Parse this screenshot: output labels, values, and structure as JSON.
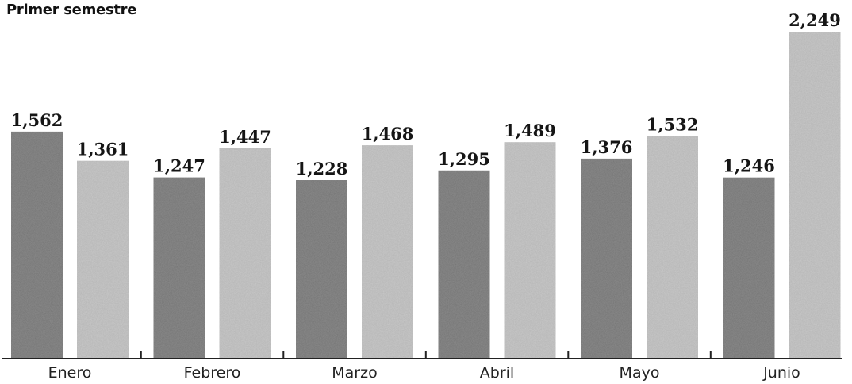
{
  "chart_data": {
    "type": "bar",
    "title": "Primer semestre",
    "categories": [
      "Enero",
      "Febrero",
      "Marzo",
      "Abril",
      "Mayo",
      "Junio"
    ],
    "series": [
      {
        "values": [
          1562,
          1247,
          1228,
          1295,
          1376,
          1246
        ],
        "color": "#8c8c8c"
      },
      {
        "values": [
          1361,
          1447,
          1468,
          1489,
          1532,
          2249
        ],
        "color": "#c9c9c9"
      }
    ],
    "value_labels": [
      [
        "1,562",
        "1,247",
        "1,228",
        "1,295",
        "1,376",
        "1,246"
      ],
      [
        "1,361",
        "1,447",
        "1,468",
        "1,489",
        "1,532",
        "2,249"
      ]
    ],
    "xlabel": "",
    "ylabel": "",
    "ylim": [
      0,
      2249
    ],
    "grid": false,
    "legend": "none"
  }
}
